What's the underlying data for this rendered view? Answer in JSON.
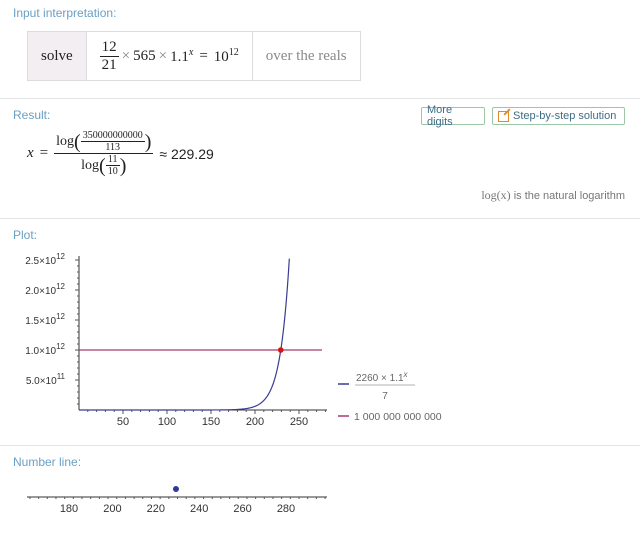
{
  "pods": {
    "input_title": "Input interpretation:",
    "result_title": "Result:",
    "plot_title": "Plot:",
    "numberline_title": "Number line:"
  },
  "input": {
    "verb": "solve",
    "frac_num": "12",
    "frac_den": "21",
    "times1": "×",
    "factor": "565",
    "times2": "×",
    "base": "1.1",
    "exp": "x",
    "equals": "=",
    "rhs_base": "10",
    "rhs_exp": "12",
    "domain": "over the reals"
  },
  "result": {
    "more_digits": "More digits",
    "step_by_step": "Step-by-step solution",
    "var": "x",
    "equals": "=",
    "log1": "log",
    "inner_num": "350000000000",
    "inner_den": "113",
    "log2": "log",
    "inner2_num": "11",
    "inner2_den": "10",
    "approx": "≈ 229.29",
    "note_math": "log(x)",
    "note_text": " is the natural logarithm"
  },
  "chart_data": {
    "type": "line",
    "x_ticks": [
      50,
      100,
      150,
      200,
      250
    ],
    "y_ticks": [
      {
        "value": 500000000000.0,
        "mant": "5.0",
        "exp": "11"
      },
      {
        "value": 1000000000000.0,
        "mant": "1.0",
        "exp": "12"
      },
      {
        "value": 1500000000000.0,
        "mant": "1.5",
        "exp": "12"
      },
      {
        "value": 2000000000000.0,
        "mant": "2.0",
        "exp": "12"
      },
      {
        "value": 2500000000000.0,
        "mant": "2.5",
        "exp": "12"
      }
    ],
    "xlim": [
      0,
      280
    ],
    "ylim": [
      0,
      2500000000000.0
    ],
    "series": [
      {
        "name_num": "2260 × 1.1",
        "name_exp": "x",
        "name_den": "7",
        "color": "#3b3b8f",
        "kind": "exp"
      },
      {
        "name": "1 000 000 000 000",
        "color": "#a63a6e",
        "kind": "const",
        "value": 1000000000000.0
      }
    ],
    "intersection": {
      "x": 229.29,
      "y": 1000000000000.0,
      "color": "#d11414"
    }
  },
  "number_line": {
    "ticks": [
      180,
      200,
      220,
      240,
      260,
      280
    ],
    "point": 229.29,
    "point_color": "#2b3b9a"
  }
}
